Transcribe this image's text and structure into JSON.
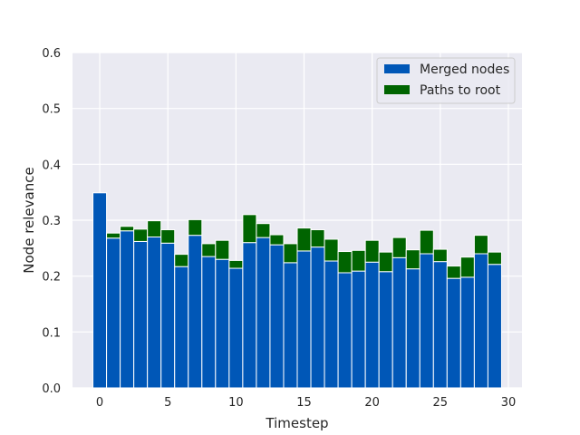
{
  "chart_data": {
    "type": "bar",
    "stacked": true,
    "xlabel": "Timestep",
    "ylabel": "Node relevance",
    "xlim": [
      -2.0,
      31.0
    ],
    "ylim": [
      0,
      0.6
    ],
    "xticks": [
      0,
      5,
      10,
      15,
      20,
      25,
      30
    ],
    "xtick_labels": [
      "0",
      "5",
      "10",
      "15",
      "20",
      "25",
      "30"
    ],
    "yticks": [
      0.0,
      0.1,
      0.2,
      0.3,
      0.4,
      0.5,
      0.6
    ],
    "ytick_labels": [
      "0.0",
      "0.1",
      "0.2",
      "0.3",
      "0.4",
      "0.5",
      "0.6"
    ],
    "grid": true,
    "legend_position": "top-right",
    "x": [
      0,
      1,
      2,
      3,
      4,
      5,
      6,
      7,
      8,
      9,
      10,
      11,
      12,
      13,
      14,
      15,
      16,
      17,
      18,
      19,
      20,
      21,
      22,
      23,
      24,
      25,
      26,
      27,
      28,
      29
    ],
    "series": [
      {
        "name": "Merged nodes",
        "color": "#0057b7",
        "values": [
          0.349,
          0.268,
          0.281,
          0.262,
          0.27,
          0.259,
          0.217,
          0.273,
          0.235,
          0.23,
          0.214,
          0.26,
          0.269,
          0.256,
          0.224,
          0.245,
          0.252,
          0.227,
          0.206,
          0.209,
          0.225,
          0.208,
          0.233,
          0.213,
          0.24,
          0.226,
          0.196,
          0.198,
          0.24,
          0.221
        ]
      },
      {
        "name": "Paths to root",
        "color": "#006400",
        "values": [
          0.0,
          0.009,
          0.008,
          0.022,
          0.029,
          0.024,
          0.022,
          0.028,
          0.023,
          0.034,
          0.014,
          0.05,
          0.025,
          0.018,
          0.034,
          0.041,
          0.031,
          0.039,
          0.038,
          0.037,
          0.039,
          0.035,
          0.036,
          0.034,
          0.042,
          0.022,
          0.022,
          0.036,
          0.033,
          0.022
        ]
      }
    ]
  }
}
